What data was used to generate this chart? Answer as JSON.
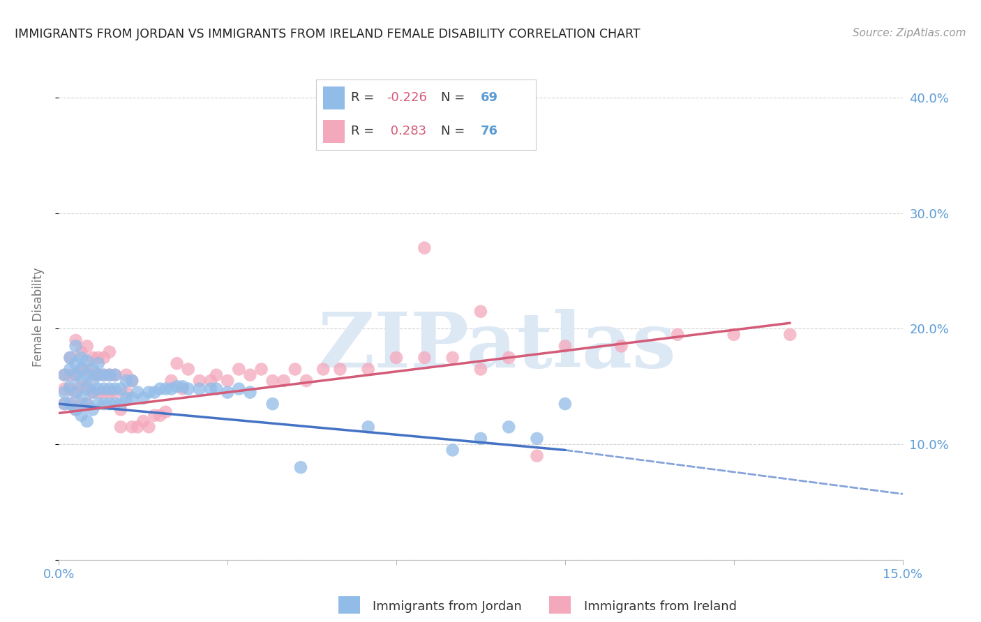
{
  "title": "IMMIGRANTS FROM JORDAN VS IMMIGRANTS FROM IRELAND FEMALE DISABILITY CORRELATION CHART",
  "source": "Source: ZipAtlas.com",
  "ylabel_label": "Female Disability",
  "x_min": 0.0,
  "x_max": 0.15,
  "y_min": 0.0,
  "y_max": 0.42,
  "x_ticks": [
    0.0,
    0.03,
    0.06,
    0.09,
    0.12,
    0.15
  ],
  "y_ticks": [
    0.0,
    0.1,
    0.2,
    0.3,
    0.4
  ],
  "jordan_R": -0.226,
  "jordan_N": 69,
  "ireland_R": 0.283,
  "ireland_N": 76,
  "jordan_color": "#92bce8",
  "ireland_color": "#f4a8bc",
  "jordan_line_color": "#4472c4",
  "ireland_line_color": "#d45b78",
  "background_color": "#ffffff",
  "grid_color": "#d0d0d0",
  "title_color": "#222222",
  "axis_label_color": "#777777",
  "tick_label_color": "#5b9bd5",
  "watermark_color": "#dde8f5",
  "legend_border_color": "#cccccc",
  "jordan_line_x0": 0.0,
  "jordan_line_x1": 0.09,
  "jordan_line_x1_dash": 0.15,
  "jordan_line_y0": 0.135,
  "jordan_line_y1": 0.095,
  "jordan_line_y1_dash": 0.057,
  "ireland_line_x0": 0.0,
  "ireland_line_x1": 0.13,
  "ireland_line_y0": 0.127,
  "ireland_line_y1": 0.205,
  "jordan_x": [
    0.001,
    0.001,
    0.001,
    0.002,
    0.002,
    0.002,
    0.002,
    0.003,
    0.003,
    0.003,
    0.003,
    0.003,
    0.004,
    0.004,
    0.004,
    0.004,
    0.004,
    0.005,
    0.005,
    0.005,
    0.005,
    0.005,
    0.006,
    0.006,
    0.006,
    0.006,
    0.007,
    0.007,
    0.007,
    0.007,
    0.008,
    0.008,
    0.008,
    0.009,
    0.009,
    0.009,
    0.01,
    0.01,
    0.01,
    0.011,
    0.011,
    0.012,
    0.012,
    0.013,
    0.013,
    0.014,
    0.015,
    0.016,
    0.017,
    0.018,
    0.019,
    0.02,
    0.021,
    0.022,
    0.023,
    0.025,
    0.027,
    0.028,
    0.03,
    0.032,
    0.034,
    0.038,
    0.043,
    0.055,
    0.07,
    0.075,
    0.08,
    0.085,
    0.09
  ],
  "jordan_y": [
    0.135,
    0.145,
    0.16,
    0.135,
    0.15,
    0.165,
    0.175,
    0.13,
    0.145,
    0.16,
    0.17,
    0.185,
    0.125,
    0.14,
    0.155,
    0.165,
    0.175,
    0.12,
    0.135,
    0.148,
    0.16,
    0.172,
    0.13,
    0.145,
    0.155,
    0.165,
    0.135,
    0.148,
    0.16,
    0.17,
    0.135,
    0.148,
    0.16,
    0.135,
    0.148,
    0.16,
    0.135,
    0.148,
    0.16,
    0.135,
    0.148,
    0.14,
    0.155,
    0.14,
    0.155,
    0.145,
    0.14,
    0.145,
    0.145,
    0.148,
    0.148,
    0.148,
    0.15,
    0.15,
    0.148,
    0.148,
    0.148,
    0.148,
    0.145,
    0.148,
    0.145,
    0.135,
    0.08,
    0.115,
    0.095,
    0.105,
    0.115,
    0.105,
    0.135
  ],
  "ireland_x": [
    0.001,
    0.001,
    0.001,
    0.002,
    0.002,
    0.002,
    0.002,
    0.003,
    0.003,
    0.003,
    0.003,
    0.004,
    0.004,
    0.004,
    0.004,
    0.005,
    0.005,
    0.005,
    0.005,
    0.006,
    0.006,
    0.006,
    0.007,
    0.007,
    0.007,
    0.008,
    0.008,
    0.008,
    0.009,
    0.009,
    0.009,
    0.01,
    0.01,
    0.011,
    0.011,
    0.012,
    0.012,
    0.013,
    0.013,
    0.014,
    0.015,
    0.016,
    0.017,
    0.018,
    0.019,
    0.02,
    0.021,
    0.022,
    0.023,
    0.025,
    0.027,
    0.028,
    0.03,
    0.032,
    0.034,
    0.036,
    0.038,
    0.04,
    0.042,
    0.044,
    0.047,
    0.05,
    0.055,
    0.06,
    0.065,
    0.07,
    0.075,
    0.08,
    0.09,
    0.1,
    0.11,
    0.12,
    0.13,
    0.065,
    0.075,
    0.085
  ],
  "ireland_y": [
    0.135,
    0.148,
    0.16,
    0.135,
    0.148,
    0.16,
    0.175,
    0.13,
    0.145,
    0.16,
    0.19,
    0.135,
    0.15,
    0.165,
    0.18,
    0.135,
    0.15,
    0.165,
    0.185,
    0.145,
    0.16,
    0.175,
    0.145,
    0.16,
    0.175,
    0.145,
    0.16,
    0.175,
    0.145,
    0.16,
    0.18,
    0.145,
    0.16,
    0.115,
    0.13,
    0.145,
    0.16,
    0.155,
    0.115,
    0.115,
    0.12,
    0.115,
    0.125,
    0.125,
    0.128,
    0.155,
    0.17,
    0.148,
    0.165,
    0.155,
    0.155,
    0.16,
    0.155,
    0.165,
    0.16,
    0.165,
    0.155,
    0.155,
    0.165,
    0.155,
    0.165,
    0.165,
    0.165,
    0.175,
    0.175,
    0.175,
    0.165,
    0.175,
    0.185,
    0.185,
    0.195,
    0.195,
    0.195,
    0.27,
    0.215,
    0.09
  ]
}
